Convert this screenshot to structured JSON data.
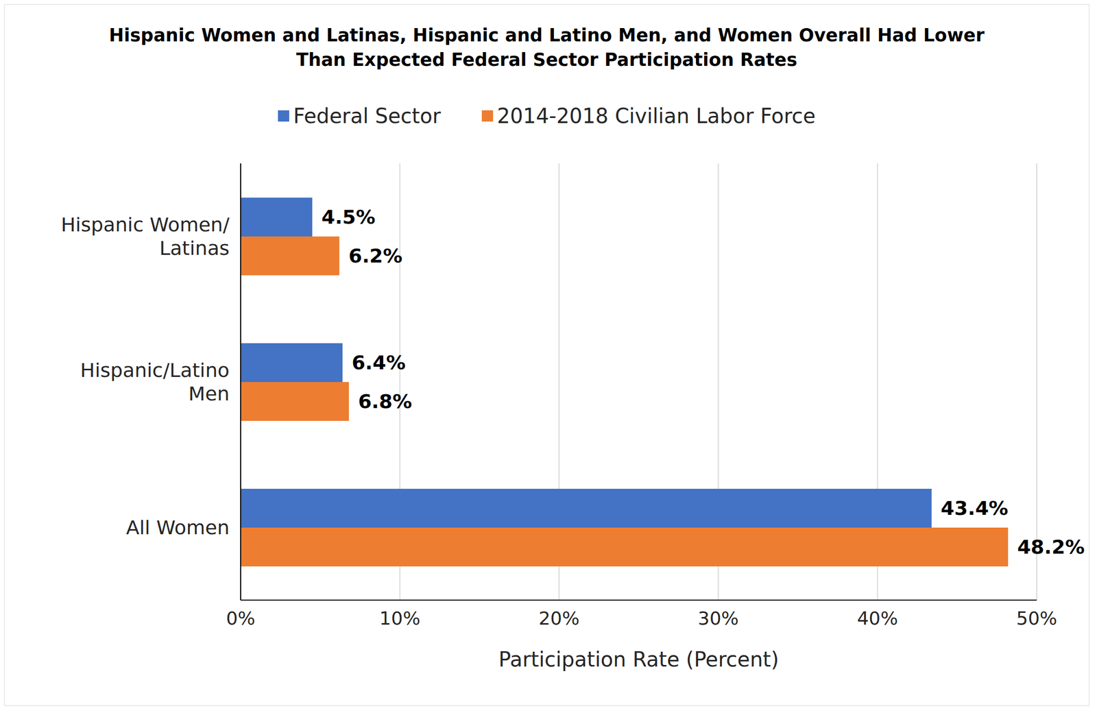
{
  "chart_data": {
    "type": "bar",
    "orientation": "horizontal",
    "title": "Hispanic Women and Latinas, Hispanic and Latino Men, and Women Overall Had Lower Than Expected Federal Sector Participation Rates",
    "x_label": "Participation Rate (Percent)",
    "categories": [
      "Hispanic Women/ Latinas",
      "Hispanic/Latino Men",
      "All Women"
    ],
    "series": [
      {
        "name": "Federal Sector",
        "color": "#4472c4",
        "values": [
          4.5,
          6.4,
          43.4
        ],
        "value_labels": [
          "4.5%",
          "6.4%",
          "43.4%"
        ]
      },
      {
        "name": "2014-2018 Civilian Labor Force",
        "color": "#ed7d31",
        "values": [
          6.2,
          6.8,
          48.2
        ],
        "value_labels": [
          "6.2%",
          "6.8%",
          "48.2%"
        ]
      }
    ],
    "xlim": [
      0,
      50
    ],
    "xticks": [
      {
        "value": 0,
        "label": "0%"
      },
      {
        "value": 10,
        "label": "10%"
      },
      {
        "value": 20,
        "label": "20%"
      },
      {
        "value": 30,
        "label": "30%"
      },
      {
        "value": 40,
        "label": "40%"
      },
      {
        "value": 50,
        "label": "50%"
      }
    ],
    "grid": true,
    "legend": "top",
    "data_labels": true
  }
}
